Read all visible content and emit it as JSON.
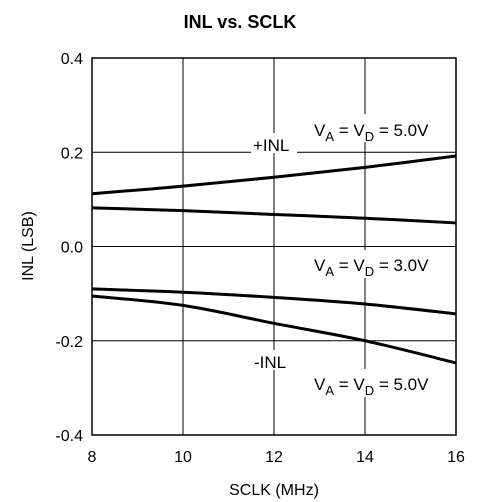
{
  "chart_data": {
    "type": "line",
    "title": "INL vs. SCLK",
    "xlabel": "SCLK (MHz)",
    "ylabel": "INL (LSB)",
    "xlim": [
      8,
      16
    ],
    "ylim": [
      -0.4,
      0.4
    ],
    "x_ticks": [
      8,
      10,
      12,
      14,
      16
    ],
    "y_ticks": [
      0.4,
      0.2,
      0.0,
      -0.2,
      -0.4
    ],
    "x_tick_labels": [
      "8",
      "10",
      "12",
      "14",
      "16"
    ],
    "y_tick_labels": [
      "0.4",
      "0.2",
      "0.0",
      "-0.2",
      "-0.4"
    ],
    "grid": true,
    "series": [
      {
        "x": [
          8,
          10,
          12,
          14,
          16
        ],
        "y": [
          0.112,
          0.128,
          0.147,
          0.168,
          0.192
        ]
      },
      {
        "x": [
          8,
          10,
          12,
          14,
          16
        ],
        "y": [
          0.082,
          0.076,
          0.068,
          0.06,
          0.05
        ]
      },
      {
        "x": [
          8,
          10,
          12,
          14,
          16
        ],
        "y": [
          -0.09,
          -0.097,
          -0.108,
          -0.122,
          -0.143
        ]
      },
      {
        "x": [
          8,
          10,
          12,
          14,
          16
        ],
        "y": [
          -0.105,
          -0.125,
          -0.163,
          -0.2,
          -0.247
        ]
      }
    ],
    "annotations": {
      "plus_inl": "+INL",
      "minus_inl": "-INL",
      "va": "V",
      "va_sub": "A",
      "vd_eq": " = V",
      "vd_sub": "D",
      "v50": " = 5.0V",
      "v30": " = 3.0V"
    }
  }
}
